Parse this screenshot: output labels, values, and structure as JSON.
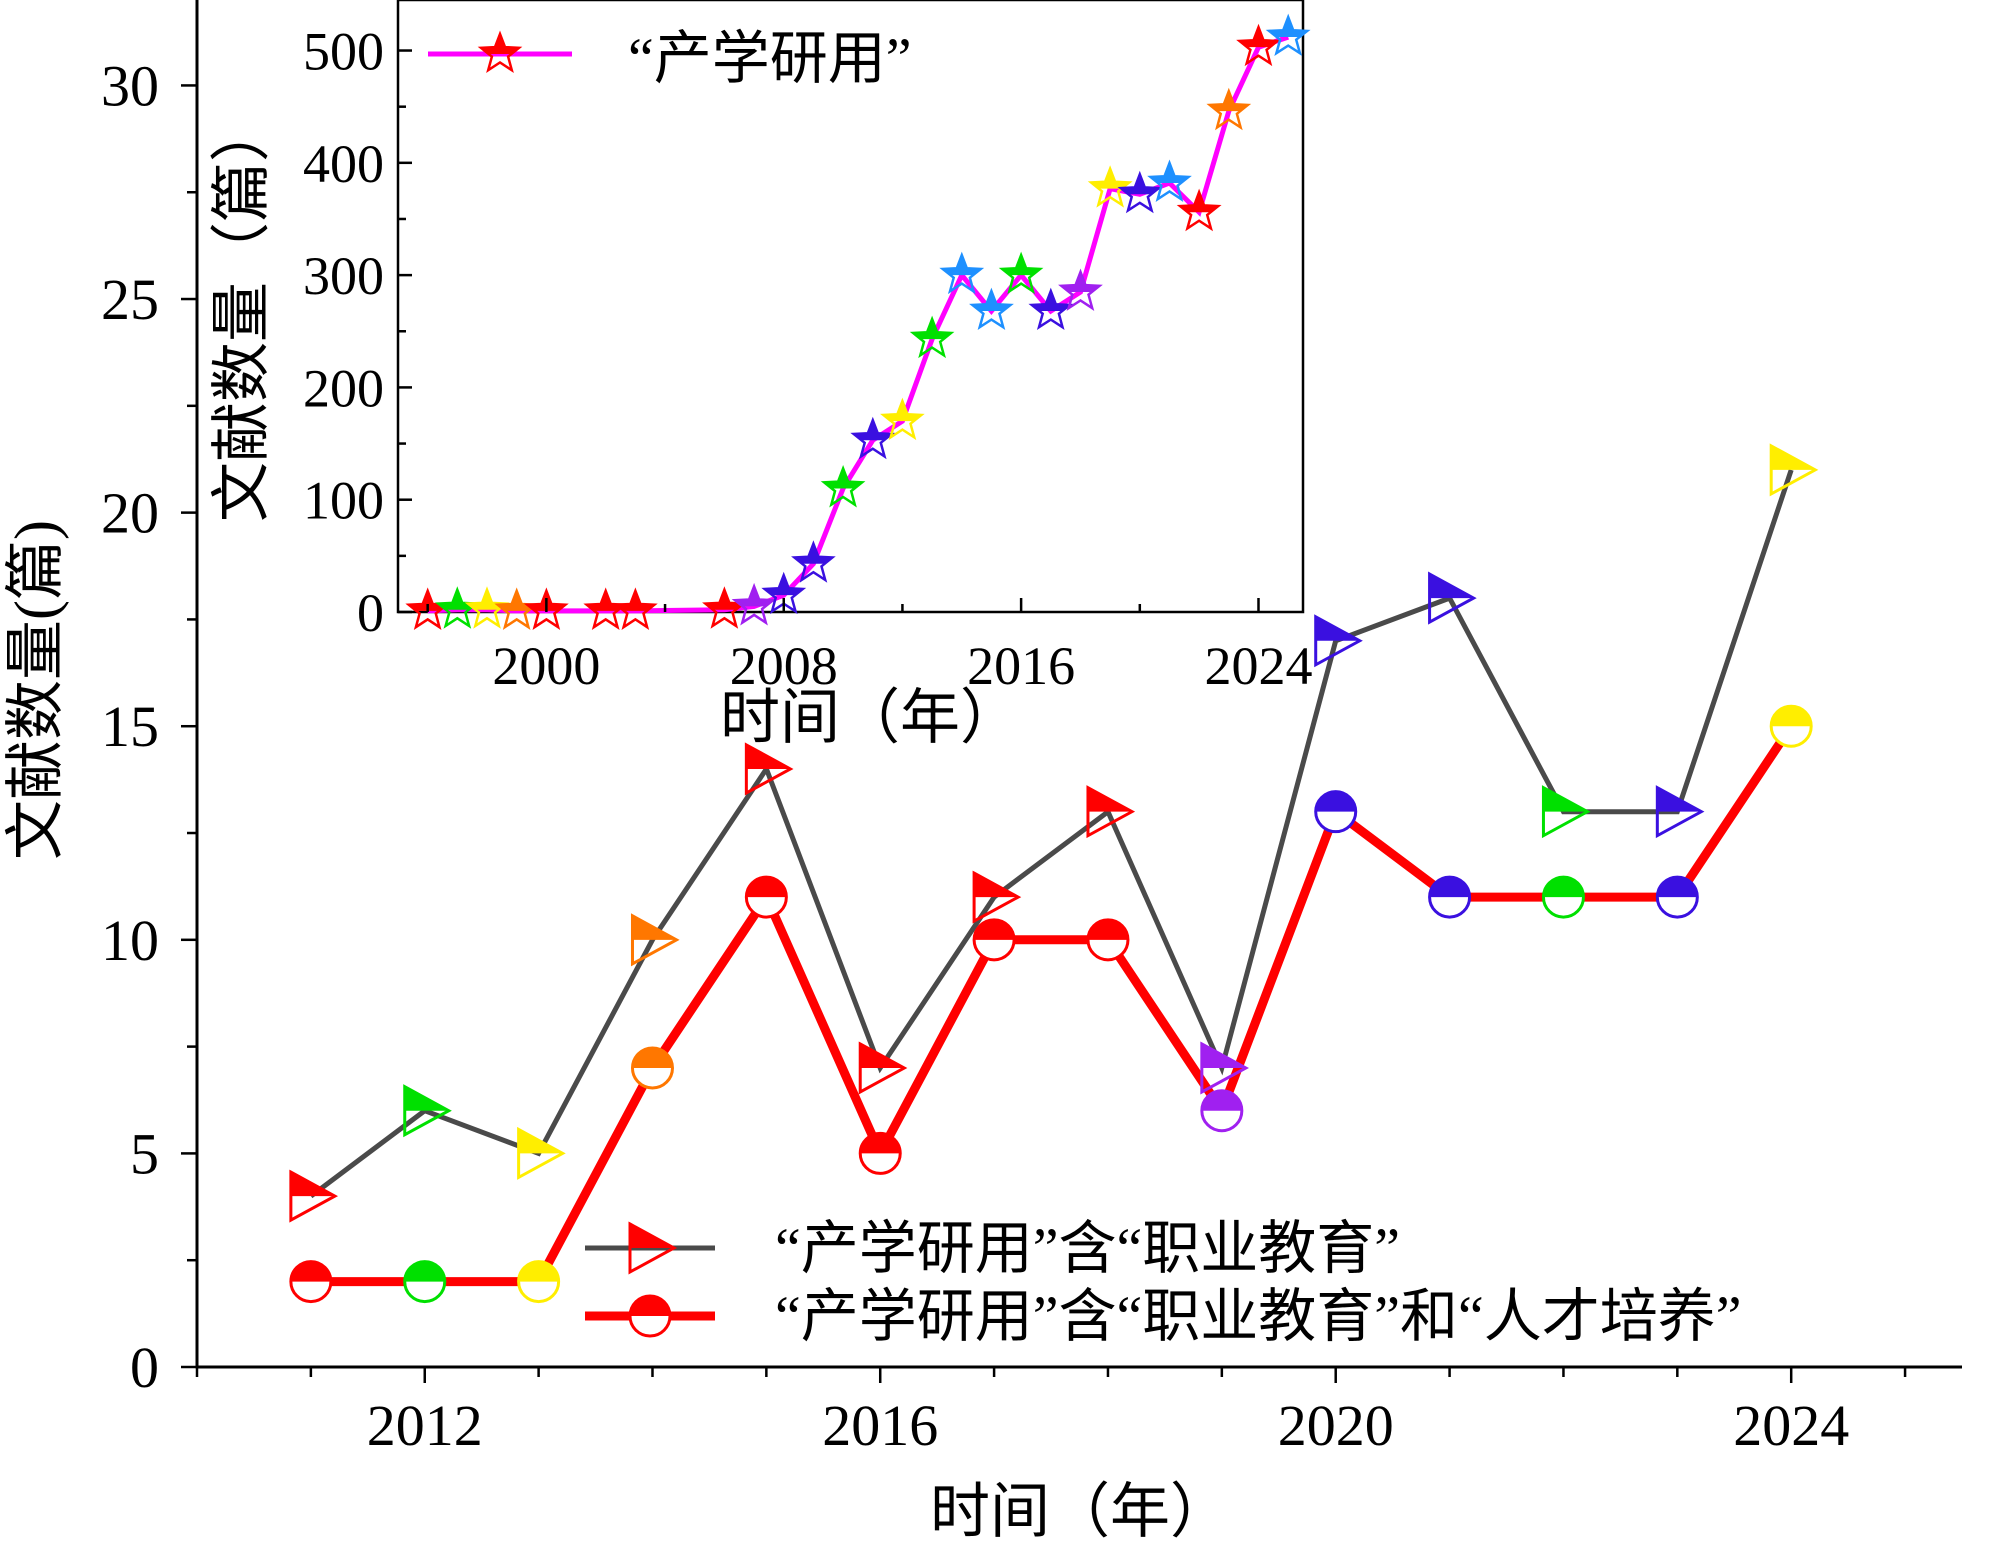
{
  "chart_data": [
    {
      "type": "line",
      "xlabel": "时间（年）",
      "ylabel": "文献数量(篇)",
      "xlim": [
        2010,
        2025.5
      ],
      "ylim": [
        0,
        32
      ],
      "xticks": [
        "2012",
        "2016",
        "2020",
        "2024"
      ],
      "yticks": [
        "0",
        "5",
        "10",
        "15",
        "20",
        "25",
        "30"
      ],
      "x": [
        2011,
        2012,
        2013,
        2014,
        2015,
        2016,
        2017,
        2018,
        2019,
        2020,
        2021,
        2022,
        2023,
        2024
      ],
      "series": [
        {
          "name": "“产学研用”含“职业教育”",
          "line_color": "#4a4a4a",
          "marker": "triangle-right",
          "values": [
            4,
            6,
            5,
            10,
            14,
            7,
            11,
            13,
            7,
            17,
            18,
            13,
            13,
            21
          ]
        },
        {
          "name": "“产学研用”含“职业教育”和“人才培养”",
          "line_color": "#ff0000",
          "marker": "half-circle",
          "values": [
            2,
            2,
            2,
            7,
            11,
            5,
            10,
            10,
            6,
            13,
            11,
            11,
            11,
            15
          ]
        }
      ],
      "marker_colors": [
        "#ff0000",
        "#00e000",
        "#ffee00",
        "#ff7700",
        "#ff0000",
        "#ff0000",
        "#ff0000",
        "#ff0000",
        "#a020f0",
        "#3a10e0",
        "#3a10e0",
        "#00e000",
        "#3a10e0",
        "#ffee00"
      ],
      "legend_position": "bottom-right"
    },
    {
      "type": "line",
      "xlabel": "时间（年）",
      "ylabel": "文献数量（篇）",
      "xlim": [
        1995,
        2025.5
      ],
      "ylim": [
        0,
        545
      ],
      "xticks": [
        "2000",
        "2008",
        "2016",
        "2024"
      ],
      "yticks": [
        "0",
        "100",
        "200",
        "300",
        "400",
        "500"
      ],
      "series": [
        {
          "name": "“产学研用”",
          "line_color": "#ff00ff",
          "marker": "star",
          "x": [
            1996,
            1997,
            1998,
            1999,
            2000,
            2002,
            2003,
            2006,
            2007,
            2008,
            2009,
            2010,
            2011,
            2012,
            2013,
            2014,
            2015,
            2016,
            2017,
            2018,
            2019,
            2020,
            2021,
            2022,
            2023,
            2024,
            2025
          ],
          "values": [
            1,
            2,
            2,
            1,
            1,
            1,
            1,
            2,
            5,
            15,
            43,
            110,
            153,
            170,
            243,
            300,
            268,
            300,
            268,
            285,
            377,
            372,
            382,
            356,
            446,
            503,
            512
          ]
        }
      ],
      "marker_colors": [
        "#ff0000",
        "#00e000",
        "#ffee00",
        "#ff7700",
        "#ff0000",
        "#ff0000",
        "#ff0000",
        "#ff0000",
        "#a020f0",
        "#3a10e0",
        "#3a10e0",
        "#00e000",
        "#3a10e0",
        "#ffee00",
        "#00e000",
        "#1e90ff",
        "#1e90ff",
        "#00e000",
        "#3a10e0",
        "#a020f0",
        "#ffee00",
        "#3a10e0",
        "#1e90ff",
        "#ff0000",
        "#ff7700",
        "#ff0000",
        "#1e90ff"
      ],
      "legend_position": "top-left"
    }
  ]
}
